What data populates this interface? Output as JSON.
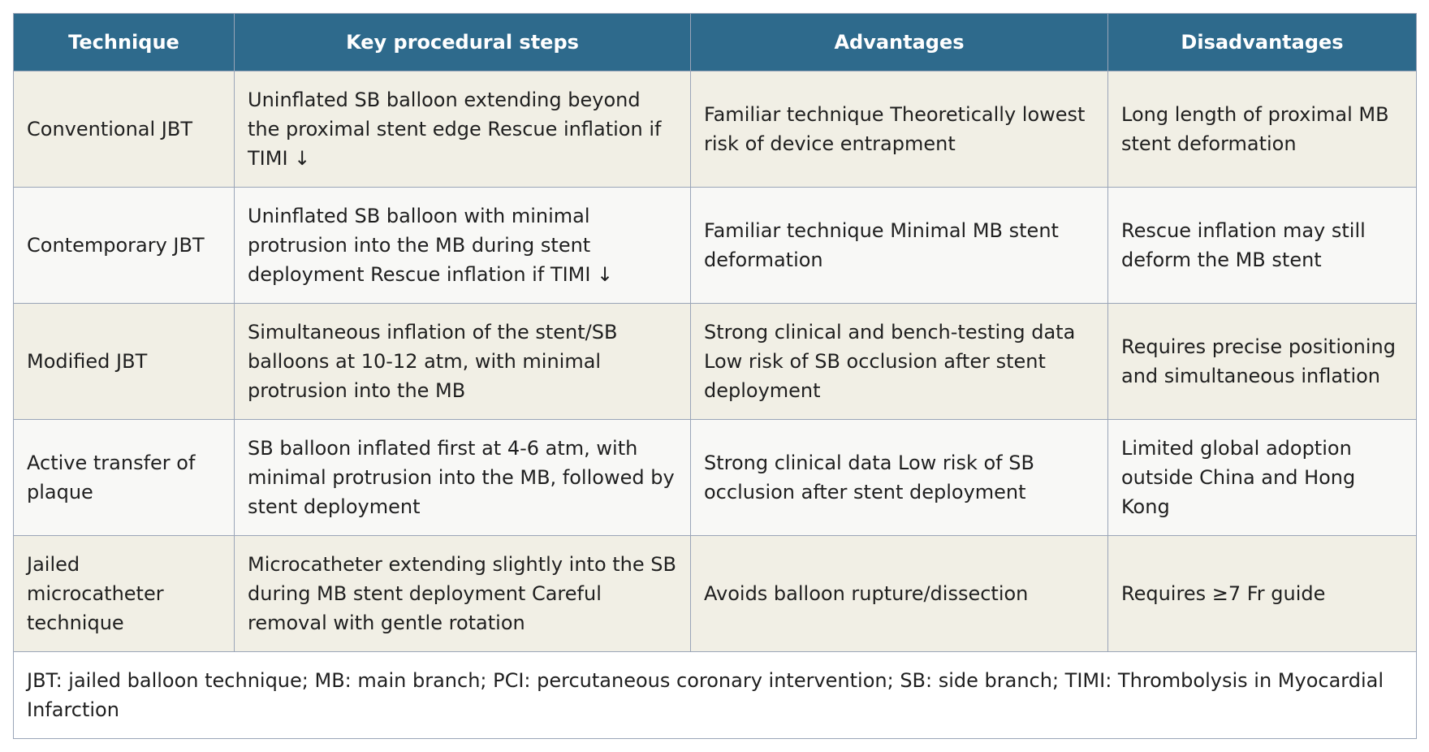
{
  "table": {
    "headers": [
      "Technique",
      "Key procedural steps",
      "Advantages",
      "Disadvantages"
    ],
    "rows": [
      {
        "technique": "Conventional JBT",
        "steps": "Uninflated SB balloon extending beyond the proximal stent edge Rescue inflation if TIMI ↓",
        "advantages": "Familiar technique Theoretically lowest risk of device entrapment",
        "disadvantages": "Long length of proximal MB stent deformation"
      },
      {
        "technique": "Contemporary JBT",
        "steps": "Uninflated SB balloon with minimal protrusion into the MB during stent deployment Rescue inflation if TIMI ↓",
        "advantages": "Familiar technique Minimal MB stent deformation",
        "disadvantages": "Rescue inflation may still deform the MB stent"
      },
      {
        "technique": "Modified JBT",
        "steps": "Simultaneous inflation of the stent/SB balloons at 10-12 atm, with minimal protrusion into the MB",
        "advantages": "Strong clinical and bench-testing data Low risk of SB occlusion after stent deployment",
        "disadvantages": "Requires precise positioning and simultaneous inflation"
      },
      {
        "technique": "Active transfer of plaque",
        "steps": "SB balloon inflated first at 4-6 atm, with minimal protrusion into the MB, followed by stent deployment",
        "advantages": "Strong clinical data Low risk of SB occlusion after stent deployment",
        "disadvantages": "Limited global adoption outside China and Hong Kong"
      },
      {
        "technique": "Jailed microcatheter technique",
        "steps": "Microcatheter extending slightly into the SB during MB stent deployment Careful removal with gentle rotation",
        "advantages": "Avoids balloon rupture/dissection",
        "disadvantages": "Requires ≥7 Fr guide"
      }
    ],
    "footnote": "JBT: jailed balloon technique; MB: main branch; PCI: percutaneous coronary intervention; SB: side branch; TIMI: Thrombolysis in Myocardial Infarction"
  },
  "colors": {
    "header_bg": "#2e6a8c",
    "header_text": "#ffffff",
    "row_odd_bg": "#f1efe5",
    "row_even_bg": "#f8f8f6",
    "border": "#9aa5b8"
  }
}
